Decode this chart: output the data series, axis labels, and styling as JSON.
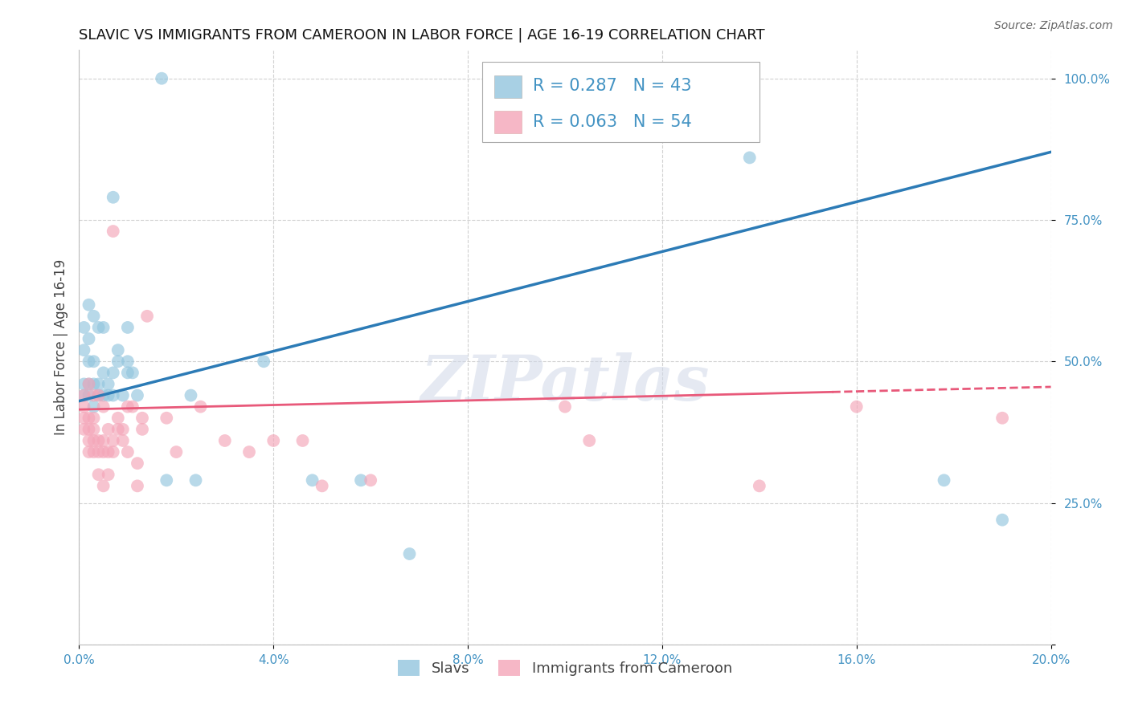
{
  "title": "SLAVIC VS IMMIGRANTS FROM CAMEROON IN LABOR FORCE | AGE 16-19 CORRELATION CHART",
  "source": "Source: ZipAtlas.com",
  "ylabel": "In Labor Force | Age 16-19",
  "legend_label1": "Slavs",
  "legend_label2": "Immigrants from Cameroon",
  "R1": 0.287,
  "N1": 43,
  "R2": 0.063,
  "N2": 54,
  "xmin": 0.0,
  "xmax": 0.2,
  "ymin": 0.0,
  "ymax": 1.05,
  "color_blue": "#92c5de",
  "color_pink": "#f4a5b8",
  "color_line_blue": "#2c7bb6",
  "color_line_pink": "#d7191c",
  "watermark": "ZIPatlas",
  "blue_line_x0": 0.0,
  "blue_line_y0": 0.43,
  "blue_line_x1": 0.2,
  "blue_line_y1": 0.87,
  "pink_line_x0": 0.0,
  "pink_line_y0": 0.415,
  "pink_line_x1": 0.2,
  "pink_line_y1": 0.455,
  "pink_dash_split": 0.155,
  "slavs_x": [
    0.001,
    0.001,
    0.001,
    0.001,
    0.002,
    0.002,
    0.002,
    0.002,
    0.002,
    0.003,
    0.003,
    0.003,
    0.003,
    0.004,
    0.004,
    0.004,
    0.005,
    0.005,
    0.005,
    0.006,
    0.006,
    0.007,
    0.007,
    0.007,
    0.008,
    0.008,
    0.009,
    0.01,
    0.01,
    0.01,
    0.011,
    0.012,
    0.017,
    0.018,
    0.023,
    0.024,
    0.038,
    0.048,
    0.058,
    0.068,
    0.138,
    0.178,
    0.19
  ],
  "slavs_y": [
    0.44,
    0.46,
    0.52,
    0.56,
    0.44,
    0.46,
    0.5,
    0.54,
    0.6,
    0.42,
    0.46,
    0.5,
    0.58,
    0.44,
    0.46,
    0.56,
    0.44,
    0.48,
    0.56,
    0.44,
    0.46,
    0.44,
    0.48,
    0.79,
    0.5,
    0.52,
    0.44,
    0.48,
    0.5,
    0.56,
    0.48,
    0.44,
    1.0,
    0.29,
    0.44,
    0.29,
    0.5,
    0.29,
    0.29,
    0.16,
    0.86,
    0.29,
    0.22
  ],
  "cameroon_x": [
    0.001,
    0.001,
    0.001,
    0.001,
    0.002,
    0.002,
    0.002,
    0.002,
    0.002,
    0.003,
    0.003,
    0.003,
    0.003,
    0.003,
    0.004,
    0.004,
    0.004,
    0.004,
    0.005,
    0.005,
    0.005,
    0.005,
    0.006,
    0.006,
    0.006,
    0.007,
    0.007,
    0.007,
    0.008,
    0.008,
    0.009,
    0.009,
    0.01,
    0.01,
    0.011,
    0.012,
    0.012,
    0.013,
    0.013,
    0.014,
    0.018,
    0.02,
    0.025,
    0.03,
    0.035,
    0.04,
    0.046,
    0.05,
    0.06,
    0.1,
    0.105,
    0.14,
    0.16,
    0.19
  ],
  "cameroon_y": [
    0.38,
    0.4,
    0.42,
    0.44,
    0.34,
    0.36,
    0.38,
    0.4,
    0.46,
    0.34,
    0.36,
    0.38,
    0.4,
    0.44,
    0.3,
    0.34,
    0.36,
    0.44,
    0.28,
    0.34,
    0.36,
    0.42,
    0.3,
    0.34,
    0.38,
    0.34,
    0.36,
    0.73,
    0.38,
    0.4,
    0.36,
    0.38,
    0.34,
    0.42,
    0.42,
    0.28,
    0.32,
    0.38,
    0.4,
    0.58,
    0.4,
    0.34,
    0.42,
    0.36,
    0.34,
    0.36,
    0.36,
    0.28,
    0.29,
    0.42,
    0.36,
    0.28,
    0.42,
    0.4
  ]
}
